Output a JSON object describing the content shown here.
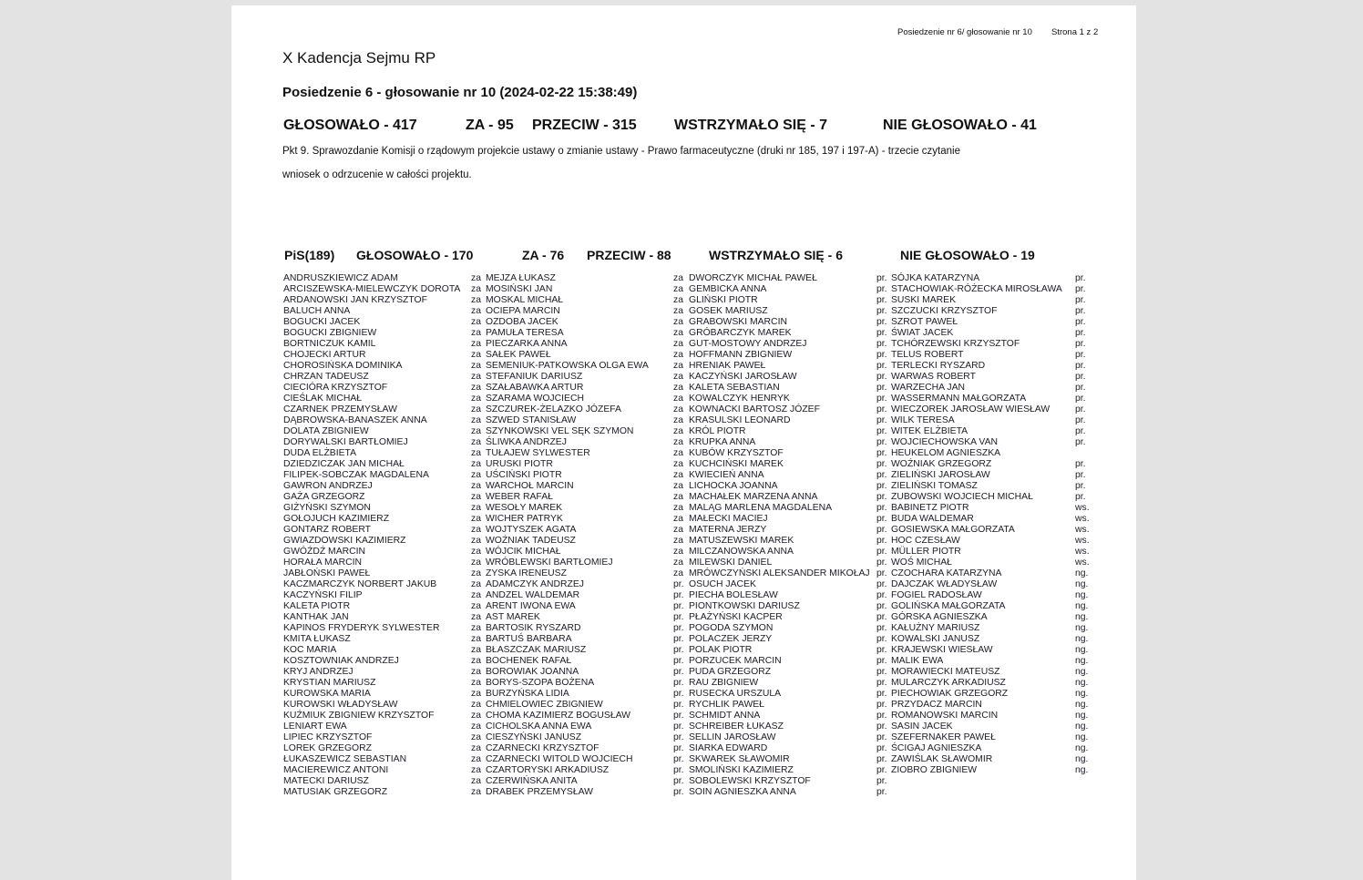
{
  "header": {
    "meeting_ref": "Posiedzenie nr 6/ głosowanie nr 10",
    "page": "Strona 1 z 2"
  },
  "title": "X Kadencja Sejmu RP",
  "subtitle": "Posiedzenie 6 - głosowanie nr 10 (2024-02-22 15:38:49)",
  "totals": {
    "voted": "GŁOSOWAŁO - 417",
    "for": "ZA - 95",
    "against": "PRZECIW - 315",
    "abstained": "WSTRZYMAŁO SIĘ - 7",
    "not_voted": "NIE GŁOSOWAŁO - 41"
  },
  "description": "Pkt 9. Sprawozdanie Komisji o rządowym projekcie ustawy o zmianie ustawy - Prawo farmaceutyczne (druki nr 185, 197 i 197-A) - trzecie czytanie",
  "motion": "wniosek o odrzucenie w całości projektu.",
  "club": {
    "name": "PiS(189)",
    "voted": "GŁOSOWAŁO - 170",
    "for": "ZA - 76",
    "against": "PRZECIW - 88",
    "abstained": "WSTRZYMAŁO SIĘ - 6",
    "not_voted": "NIE GŁOSOWAŁO - 19"
  },
  "columns": [
    [
      {
        "name": "ANDRUSZKIEWICZ ADAM",
        "vote": "za"
      },
      {
        "name": "ARCISZEWSKA-MIELEWCZYK DOROTA",
        "vote": "za"
      },
      {
        "name": "ARDANOWSKI JAN KRZYSZTOF",
        "vote": "za"
      },
      {
        "name": "BALUCH ANNA",
        "vote": "za"
      },
      {
        "name": "BOGUCKI JACEK",
        "vote": "za"
      },
      {
        "name": "BOGUCKI ZBIGNIEW",
        "vote": "za"
      },
      {
        "name": "BORTNICZUK KAMIL",
        "vote": "za"
      },
      {
        "name": "CHOJECKI ARTUR",
        "vote": "za"
      },
      {
        "name": "CHOROSIŃSKA DOMINIKA",
        "vote": "za"
      },
      {
        "name": "CHRZAN TADEUSZ",
        "vote": "za"
      },
      {
        "name": "CIECIÓRA KRZYSZTOF",
        "vote": "za"
      },
      {
        "name": "CIEŚLAK MICHAŁ",
        "vote": "za"
      },
      {
        "name": "CZARNEK PRZEMYSŁAW",
        "vote": "za"
      },
      {
        "name": "DĄBROWSKA-BANASZEK ANNA",
        "vote": "za"
      },
      {
        "name": "DOLATA ZBIGNIEW",
        "vote": "za"
      },
      {
        "name": "DORYWALSKI BARTŁOMIEJ",
        "vote": "za"
      },
      {
        "name": "DUDA ELŻBIETA",
        "vote": "za"
      },
      {
        "name": "DZIEDZICZAK JAN MICHAŁ",
        "vote": "za"
      },
      {
        "name": "FILIPEK-SOBCZAK MAGDALENA",
        "vote": "za"
      },
      {
        "name": "GAWRON ANDRZEJ",
        "vote": "za"
      },
      {
        "name": "GAŻA GRZEGORZ",
        "vote": "za"
      },
      {
        "name": "GIŻYŃSKI SZYMON",
        "vote": "za"
      },
      {
        "name": "GOŁOJUCH KAZIMIERZ",
        "vote": "za"
      },
      {
        "name": "GONTARZ ROBERT",
        "vote": "za"
      },
      {
        "name": "GWIAZDOWSKI KAZIMIERZ",
        "vote": "za"
      },
      {
        "name": "GWÓŹDŹ MARCIN",
        "vote": "za"
      },
      {
        "name": "HORAŁA MARCIN",
        "vote": "za"
      },
      {
        "name": "JABŁOŃSKI PAWEŁ",
        "vote": "za"
      },
      {
        "name": "KACZMARCZYK NORBERT JAKUB",
        "vote": "za"
      },
      {
        "name": "KACZYŃSKI FILIP",
        "vote": "za"
      },
      {
        "name": "KALETA PIOTR",
        "vote": "za"
      },
      {
        "name": "KANTHAK JAN",
        "vote": "za"
      },
      {
        "name": "KAPINOS FRYDERYK SYLWESTER",
        "vote": "za"
      },
      {
        "name": "KMITA ŁUKASZ",
        "vote": "za"
      },
      {
        "name": "KOC MARIA",
        "vote": "za"
      },
      {
        "name": "KOSZTOWNIAK ANDRZEJ",
        "vote": "za"
      },
      {
        "name": "KRYJ ANDRZEJ",
        "vote": "za"
      },
      {
        "name": "KRYSTIAN MARIUSZ",
        "vote": "za"
      },
      {
        "name": "KUROWSKA MARIA",
        "vote": "za"
      },
      {
        "name": "KUROWSKI WŁADYSŁAW",
        "vote": "za"
      },
      {
        "name": "KUŹMIUK ZBIGNIEW KRZYSZTOF",
        "vote": "za"
      },
      {
        "name": "LENIART EWA",
        "vote": "za"
      },
      {
        "name": "LIPIEC KRZYSZTOF",
        "vote": "za"
      },
      {
        "name": "LOREK GRZEGORZ",
        "vote": "za"
      },
      {
        "name": "ŁUKASZEWICZ SEBASTIAN",
        "vote": "za"
      },
      {
        "name": "MACIEREWICZ ANTONI",
        "vote": "za"
      },
      {
        "name": "MATECKI DARIUSZ",
        "vote": "za"
      },
      {
        "name": "MATUSIAK GRZEGORZ",
        "vote": "za"
      }
    ],
    [
      {
        "name": "MEJZA ŁUKASZ",
        "vote": "za"
      },
      {
        "name": "MOSIŃSKI JAN",
        "vote": "za"
      },
      {
        "name": "MOSKAL MICHAŁ",
        "vote": "za"
      },
      {
        "name": "OCIEPA MARCIN",
        "vote": "za"
      },
      {
        "name": "OZDOBA JACEK",
        "vote": "za"
      },
      {
        "name": "PAMUŁA TERESA",
        "vote": "za"
      },
      {
        "name": "PIECZARKA ANNA",
        "vote": "za"
      },
      {
        "name": "SAŁEK PAWEŁ",
        "vote": "za"
      },
      {
        "name": "SEMENIUK-PATKOWSKA OLGA EWA",
        "vote": "za"
      },
      {
        "name": "STEFANIUK DARIUSZ",
        "vote": "za"
      },
      {
        "name": "SZAŁABAWKA ARTUR",
        "vote": "za"
      },
      {
        "name": "SZARAMA WOJCIECH",
        "vote": "za"
      },
      {
        "name": "SZCZUREK-ŻELAZKO JÓZEFA",
        "vote": "za"
      },
      {
        "name": "SZWED STANISŁAW",
        "vote": "za"
      },
      {
        "name": "SZYNKOWSKI VEL SĘK SZYMON",
        "vote": "za"
      },
      {
        "name": "ŚLIWKA ANDRZEJ",
        "vote": "za"
      },
      {
        "name": "TUŁAJEW SYLWESTER",
        "vote": "za"
      },
      {
        "name": "URUSKI PIOTR",
        "vote": "za"
      },
      {
        "name": "UŚCIŃSKI PIOTR",
        "vote": "za"
      },
      {
        "name": "WARCHOŁ MARCIN",
        "vote": "za"
      },
      {
        "name": "WEBER RAFAŁ",
        "vote": "za"
      },
      {
        "name": "WESOŁY MAREK",
        "vote": "za"
      },
      {
        "name": "WICHER PATRYK",
        "vote": "za"
      },
      {
        "name": "WOJTYSZEK AGATA",
        "vote": "za"
      },
      {
        "name": "WOŹNIAK TADEUSZ",
        "vote": "za"
      },
      {
        "name": "WÓJCIK MICHAŁ",
        "vote": "za"
      },
      {
        "name": "WRÓBLEWSKI BARTŁOMIEJ",
        "vote": "za"
      },
      {
        "name": "ZYSKA IRENEUSZ",
        "vote": "za"
      },
      {
        "name": "ADAMCZYK ANDRZEJ",
        "vote": "pr."
      },
      {
        "name": "ANDZEL WALDEMAR",
        "vote": "pr."
      },
      {
        "name": "ARENT IWONA EWA",
        "vote": "pr."
      },
      {
        "name": "AST MAREK",
        "vote": "pr."
      },
      {
        "name": "BARTOSIK RYSZARD",
        "vote": "pr."
      },
      {
        "name": "BARTUŚ BARBARA",
        "vote": "pr."
      },
      {
        "name": "BŁASZCZAK MARIUSZ",
        "vote": "pr."
      },
      {
        "name": "BOCHENEK RAFAŁ",
        "vote": "pr."
      },
      {
        "name": "BOROWIAK JOANNA",
        "vote": "pr."
      },
      {
        "name": "BORYS-SZOPA BOŻENA",
        "vote": "pr."
      },
      {
        "name": "BURZYŃSKA LIDIA",
        "vote": "pr."
      },
      {
        "name": "CHMIELOWIEC ZBIGNIEW",
        "vote": "pr."
      },
      {
        "name": "CHOMA KAZIMIERZ BOGUSŁAW",
        "vote": "pr."
      },
      {
        "name": "CICHOLSKA ANNA EWA",
        "vote": "pr."
      },
      {
        "name": "CIESZYŃSKI JANUSZ",
        "vote": "pr."
      },
      {
        "name": "CZARNECKI KRZYSZTOF",
        "vote": "pr."
      },
      {
        "name": "CZARNECKI WITOLD WOJCIECH",
        "vote": "pr."
      },
      {
        "name": "CZARTORYSKI ARKADIUSZ",
        "vote": "pr."
      },
      {
        "name": "CZERWIŃSKA ANITA",
        "vote": "pr."
      },
      {
        "name": "DRABEK PRZEMYSŁAW",
        "vote": "pr."
      }
    ],
    [
      {
        "name": "DWORCZYK MICHAŁ PAWEŁ",
        "vote": "pr."
      },
      {
        "name": "GEMBICKA ANNA",
        "vote": "pr."
      },
      {
        "name": "GLIŃSKI PIOTR",
        "vote": "pr."
      },
      {
        "name": "GOSEK MARIUSZ",
        "vote": "pr."
      },
      {
        "name": "GRABOWSKI MARCIN",
        "vote": "pr."
      },
      {
        "name": "GRÓBARCZYK MAREK",
        "vote": "pr."
      },
      {
        "name": "GUT-MOSTOWY ANDRZEJ",
        "vote": "pr."
      },
      {
        "name": "HOFFMANN ZBIGNIEW",
        "vote": "pr."
      },
      {
        "name": "HRENIAK PAWEŁ",
        "vote": "pr."
      },
      {
        "name": "KACZYŃSKI JAROSŁAW",
        "vote": "pr."
      },
      {
        "name": "KALETA SEBASTIAN",
        "vote": "pr."
      },
      {
        "name": "KOWALCZYK HENRYK",
        "vote": "pr."
      },
      {
        "name": "KOWNACKI BARTOSZ JÓZEF",
        "vote": "pr."
      },
      {
        "name": "KRASULSKI LEONARD",
        "vote": "pr."
      },
      {
        "name": "KRÓL PIOTR",
        "vote": "pr."
      },
      {
        "name": "KRUPKA ANNA",
        "vote": "pr."
      },
      {
        "name": "KUBÓW KRZYSZTOF",
        "vote": "pr."
      },
      {
        "name": "KUCHCIŃSKI MAREK",
        "vote": "pr."
      },
      {
        "name": "KWIECIEŃ ANNA",
        "vote": "pr."
      },
      {
        "name": "LICHOCKA JOANNA",
        "vote": "pr."
      },
      {
        "name": "MACHAŁEK MARZENA ANNA",
        "vote": "pr."
      },
      {
        "name": "MALĄG MARLENA MAGDALENA",
        "vote": "pr."
      },
      {
        "name": "MAŁECKI MACIEJ",
        "vote": "pr."
      },
      {
        "name": "MATERNA JERZY",
        "vote": "pr."
      },
      {
        "name": "MATUSZEWSKI MAREK",
        "vote": "pr."
      },
      {
        "name": "MILCZANOWSKA ANNA",
        "vote": "pr."
      },
      {
        "name": "MILEWSKI DANIEL",
        "vote": "pr."
      },
      {
        "name": "MRÓWCZYŃSKI ALEKSANDER MIKOŁAJ",
        "vote": "pr."
      },
      {
        "name": "OSUCH JACEK",
        "vote": "pr."
      },
      {
        "name": "PIECHA BOLESŁAW",
        "vote": "pr."
      },
      {
        "name": "PIONTKOWSKI DARIUSZ",
        "vote": "pr."
      },
      {
        "name": "PŁAŻYŃSKI KACPER",
        "vote": "pr."
      },
      {
        "name": "POGODA SZYMON",
        "vote": "pr."
      },
      {
        "name": "POLACZEK JERZY",
        "vote": "pr."
      },
      {
        "name": "POLAK PIOTR",
        "vote": "pr."
      },
      {
        "name": "PORZUCEK MARCIN",
        "vote": "pr."
      },
      {
        "name": "PUDA GRZEGORZ",
        "vote": "pr."
      },
      {
        "name": "RAU ZBIGNIEW",
        "vote": "pr."
      },
      {
        "name": "RUSECKA URSZULA",
        "vote": "pr."
      },
      {
        "name": "RYCHLIK PAWEŁ",
        "vote": "pr."
      },
      {
        "name": "SCHMIDT ANNA",
        "vote": "pr."
      },
      {
        "name": "SCHREIBER ŁUKASZ",
        "vote": "pr."
      },
      {
        "name": "SELLIN JAROSŁAW",
        "vote": "pr."
      },
      {
        "name": "SIARKA EDWARD",
        "vote": "pr."
      },
      {
        "name": "SKWAREK SŁAWOMIR",
        "vote": "pr."
      },
      {
        "name": "SMOLIŃSKI KAZIMIERZ",
        "vote": "pr."
      },
      {
        "name": "SOBOLEWSKI KRZYSZTOF",
        "vote": "pr."
      },
      {
        "name": "SOIN AGNIESZKA ANNA",
        "vote": "pr."
      }
    ],
    [
      {
        "name": "SÓJKA KATARZYNA",
        "vote": "pr."
      },
      {
        "name": "STACHOWIAK-RÓŻECKA MIROSŁAWA",
        "vote": "pr."
      },
      {
        "name": "SUSKI MAREK",
        "vote": "pr."
      },
      {
        "name": "SZCZUCKI KRZYSZTOF",
        "vote": "pr."
      },
      {
        "name": "SZROT PAWEŁ",
        "vote": "pr."
      },
      {
        "name": "ŚWIAT JACEK",
        "vote": "pr."
      },
      {
        "name": "TCHÓRZEWSKI KRZYSZTOF",
        "vote": "pr."
      },
      {
        "name": "TELUS ROBERT",
        "vote": "pr."
      },
      {
        "name": "TERLECKI RYSZARD",
        "vote": "pr."
      },
      {
        "name": "WARWAS ROBERT",
        "vote": "pr."
      },
      {
        "name": "WARZECHA JAN",
        "vote": "pr."
      },
      {
        "name": "WASSERMANN MAŁGORZATA",
        "vote": "pr."
      },
      {
        "name": "WIECZOREK JAROSŁAW WIESŁAW",
        "vote": "pr."
      },
      {
        "name": "WILK TERESA",
        "vote": "pr."
      },
      {
        "name": "WITEK ELŻBIETA",
        "vote": "pr."
      },
      {
        "name": "WOJCIECHOWSKA VAN\nHEUKELOM AGNIESZKA",
        "vote": "pr."
      },
      {
        "name": "WOŹNIAK GRZEGORZ",
        "vote": "pr."
      },
      {
        "name": "ZIELIŃSKI JAROSŁAW",
        "vote": "pr."
      },
      {
        "name": "ZIELIŃSKI TOMASZ",
        "vote": "pr."
      },
      {
        "name": "ZUBOWSKI WOJCIECH MICHAŁ",
        "vote": "pr."
      },
      {
        "name": "BABINETZ PIOTR",
        "vote": "ws."
      },
      {
        "name": "BUDA WALDEMAR",
        "vote": "ws."
      },
      {
        "name": "GOSIEWSKA MAŁGORZATA",
        "vote": "ws."
      },
      {
        "name": "HOC CZESŁAW",
        "vote": "ws."
      },
      {
        "name": "MÜLLER PIOTR",
        "vote": "ws."
      },
      {
        "name": "WOŚ MICHAŁ",
        "vote": "ws."
      },
      {
        "name": "CZOCHARA KATARZYNA",
        "vote": "ng."
      },
      {
        "name": "DAJCZAK WŁADYSŁAW",
        "vote": "ng."
      },
      {
        "name": "FOGIEL RADOSŁAW",
        "vote": "ng."
      },
      {
        "name": "GOLIŃSKA MAŁGORZATA",
        "vote": "ng."
      },
      {
        "name": "GÓRSKA AGNIESZKA",
        "vote": "ng."
      },
      {
        "name": "KAŁUŻNY MARIUSZ",
        "vote": "ng."
      },
      {
        "name": "KOWALSKI JANUSZ",
        "vote": "ng."
      },
      {
        "name": "KRAJEWSKI WIESŁAW",
        "vote": "ng."
      },
      {
        "name": "MALIK EWA",
        "vote": "ng."
      },
      {
        "name": "MORAWIECKI MATEUSZ",
        "vote": "ng."
      },
      {
        "name": "MULARCZYK ARKADIUSZ",
        "vote": "ng."
      },
      {
        "name": "PIECHOWIAK GRZEGORZ",
        "vote": "ng."
      },
      {
        "name": "PRZYDACZ MARCIN",
        "vote": "ng."
      },
      {
        "name": "ROMANOWSKI MARCIN",
        "vote": "ng."
      },
      {
        "name": "SASIN JACEK",
        "vote": "ng."
      },
      {
        "name": "SZEFERNAKER PAWEŁ",
        "vote": "ng."
      },
      {
        "name": "ŚCIGAJ AGNIESZKA",
        "vote": "ng."
      },
      {
        "name": "ZAWIŚLAK SŁAWOMIR",
        "vote": "ng."
      },
      {
        "name": "ZIOBRO ZBIGNIEW",
        "vote": "ng."
      }
    ]
  ]
}
